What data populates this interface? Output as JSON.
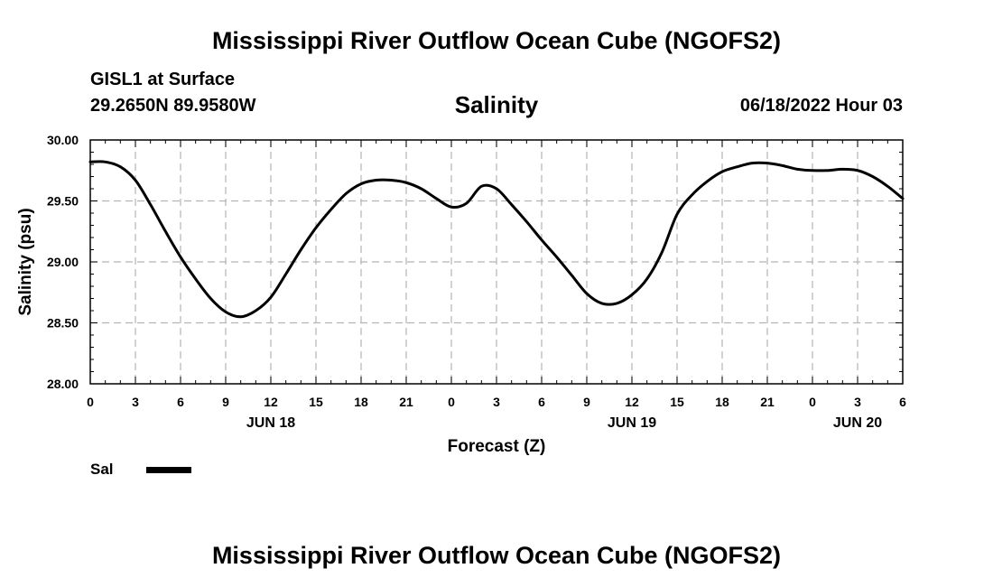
{
  "header": {
    "title": "Mississippi River Outflow Ocean Cube (NGOFS2)",
    "station": "GISL1 at Surface",
    "coordinates": "29.2650N  89.9580W",
    "chart_title": "Salinity",
    "datetime": "06/18/2022 Hour 03"
  },
  "legend": {
    "label": "Sal",
    "color": "#000000"
  },
  "footer": {
    "title": "Mississippi River Outflow Ocean Cube (NGOFS2)"
  },
  "chart_data": {
    "type": "line",
    "title": "Salinity",
    "xlabel": "Forecast (Z)",
    "ylabel": "Salinity (psu)",
    "xlim": [
      0,
      54
    ],
    "ylim": [
      28.0,
      30.0
    ],
    "grid": true,
    "x_ticks": [
      0,
      3,
      6,
      9,
      12,
      15,
      18,
      21,
      24,
      27,
      30,
      33,
      36,
      39,
      42,
      45,
      48,
      51,
      54
    ],
    "x_tick_labels": [
      "0",
      "3",
      "6",
      "9",
      "12",
      "15",
      "18",
      "21",
      "0",
      "3",
      "6",
      "9",
      "12",
      "15",
      "18",
      "21",
      "0",
      "3",
      "6"
    ],
    "date_labels": [
      {
        "x": 12,
        "label": "JUN 18"
      },
      {
        "x": 36,
        "label": "JUN 19"
      },
      {
        "x": 51,
        "label": "JUN 20"
      }
    ],
    "y_ticks": [
      28.0,
      28.5,
      29.0,
      29.5,
      30.0
    ],
    "y_tick_labels": [
      "28.00",
      "28.50",
      "29.00",
      "29.50",
      "30.00"
    ],
    "series": [
      {
        "name": "Sal",
        "color": "#000000",
        "x": [
          0,
          1,
          2,
          3,
          4,
          5,
          6,
          7,
          8,
          9,
          10,
          11,
          12,
          13,
          14,
          15,
          16,
          17,
          18,
          19,
          20,
          21,
          22,
          23,
          24,
          25,
          26,
          27,
          28,
          29,
          30,
          31,
          32,
          33,
          34,
          35,
          36,
          37,
          38,
          39,
          40,
          41,
          42,
          43,
          44,
          45,
          46,
          47,
          48,
          49,
          50,
          51,
          52,
          53,
          54
        ],
        "values": [
          29.82,
          29.82,
          29.78,
          29.67,
          29.47,
          29.25,
          29.04,
          28.86,
          28.7,
          28.59,
          28.55,
          28.6,
          28.71,
          28.9,
          29.1,
          29.28,
          29.43,
          29.56,
          29.64,
          29.67,
          29.67,
          29.65,
          29.6,
          29.52,
          29.45,
          29.48,
          29.62,
          29.6,
          29.47,
          29.33,
          29.18,
          29.04,
          28.89,
          28.74,
          28.66,
          28.66,
          28.73,
          28.86,
          29.08,
          29.39,
          29.55,
          29.66,
          29.74,
          29.78,
          29.81,
          29.81,
          29.79,
          29.76,
          29.75,
          29.75,
          29.76,
          29.75,
          29.7,
          29.62,
          29.52
        ]
      }
    ]
  }
}
